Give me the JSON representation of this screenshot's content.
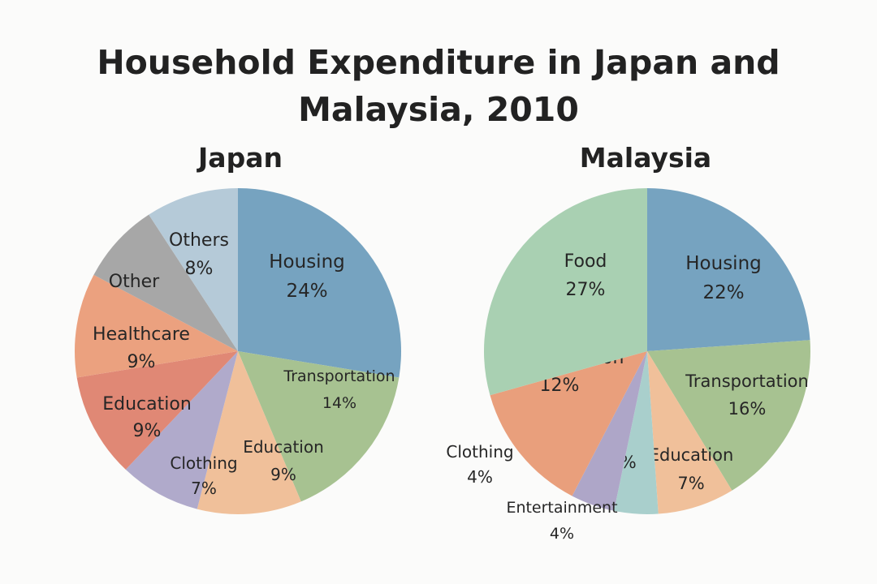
{
  "title": "Household Expenditure in Japan and Malaysia, 2010",
  "title_lines": [
    "Household Expenditure in Japan and",
    "Malaysia, 2010"
  ],
  "chart_data": [
    {
      "type": "pie",
      "title": "Japan",
      "slices": [
        {
          "label": "Housing",
          "value_label": "24%",
          "value": 24,
          "color": "#76a3c0"
        },
        {
          "label": "Transportation",
          "value_label": "14%",
          "value": 14,
          "color": "#a7c291"
        },
        {
          "label": "Education",
          "value_label": "9%",
          "value": 9,
          "color": "#f0c09a"
        },
        {
          "label": "Clothing",
          "value_label": "7%",
          "value": 7,
          "color": "#b0aacb"
        },
        {
          "label": "Education",
          "value_label": "9%",
          "value": 9,
          "color": "#e08875"
        },
        {
          "label": "Healthcare",
          "value_label": "9%",
          "value": 9,
          "color": "#eba17f"
        },
        {
          "label": "Other",
          "value_label": "",
          "value": 7,
          "color": "#a7a7a7"
        },
        {
          "label": "Others",
          "value_label": "8%",
          "value": 8,
          "color": "#b5cad8"
        }
      ]
    },
    {
      "type": "pie",
      "title": "Malaysia",
      "slices": [
        {
          "label": "Housing",
          "value_label": "22%",
          "value": 22,
          "color": "#76a3c0"
        },
        {
          "label": "Transportation",
          "value_label": "16%",
          "value": 16,
          "color": "#a7c291"
        },
        {
          "label": "Education",
          "value_label": "7%",
          "value": 7,
          "color": "#f0c09a"
        },
        {
          "label": "",
          "value_label": "4%",
          "value": 4,
          "color": "#a9cfcc"
        },
        {
          "label": "",
          "value_label": "4%",
          "value": 4,
          "color": "#aea6c8"
        },
        {
          "label": "Transportation",
          "value_label": "12%",
          "value": 12,
          "color": "#e99f7c"
        },
        {
          "label": "Food",
          "value_label": "27%",
          "value": 27,
          "color": "#a9d0b2"
        }
      ],
      "outside_labels": [
        {
          "label": "Clothing",
          "value_label": "4%"
        },
        {
          "label": "Entertainment",
          "value_label": "4%"
        }
      ]
    }
  ]
}
